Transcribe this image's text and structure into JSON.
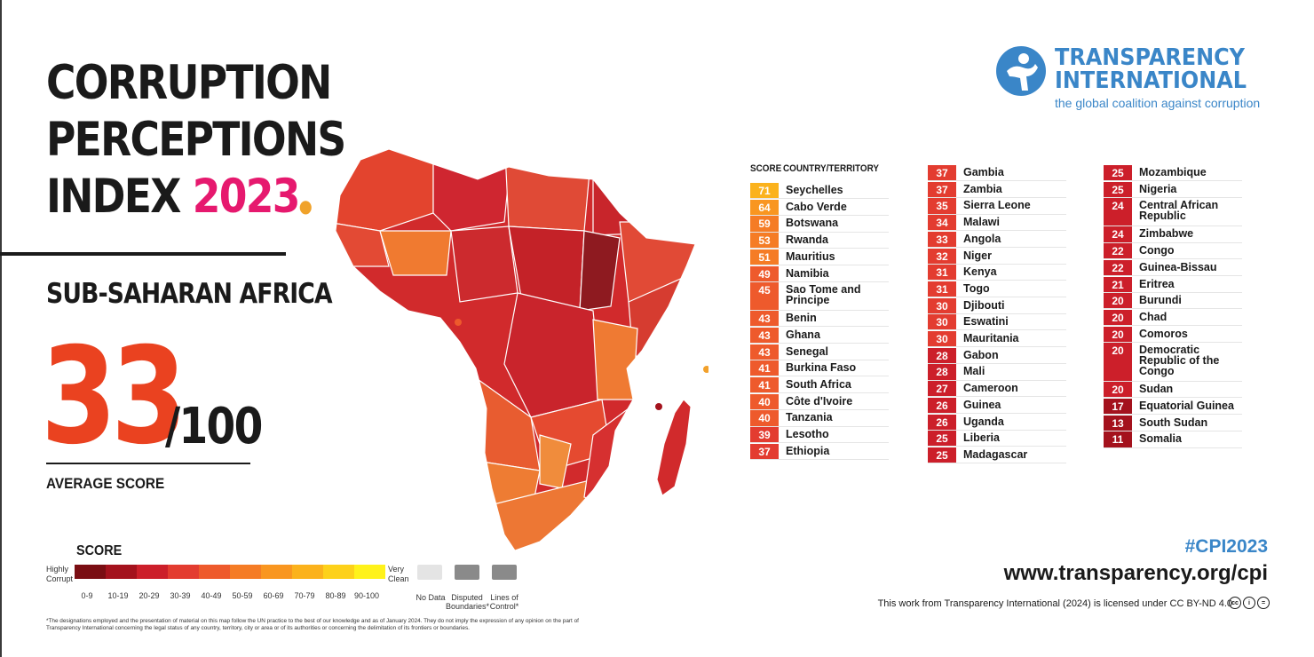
{
  "header": {
    "title_lines": [
      "CORRUPTION",
      "PERCEPTIONS",
      "INDEX"
    ],
    "year": "2023",
    "region": "SUB-SAHARAN AFRICA"
  },
  "average": {
    "score": "33",
    "max": "/100",
    "label": "AVERAGE SCORE"
  },
  "legend": {
    "title": "SCORE",
    "low_label": "Highly Corrupt",
    "high_label": "Very Clean",
    "ranges": [
      "0-9",
      "10-19",
      "20-29",
      "30-39",
      "40-49",
      "50-59",
      "60-69",
      "70-79",
      "80-89",
      "90-100"
    ],
    "colors": [
      "#7a0e13",
      "#a4121d",
      "#cc1f2a",
      "#e33c30",
      "#ee5a2c",
      "#f57c25",
      "#f99620",
      "#fbb21c",
      "#fdd11a",
      "#fff21a"
    ],
    "no_data": "No Data",
    "disputed": "Disputed Boundaries*",
    "lines_of_control": "Lines of Control*"
  },
  "footnote": "*The designations employed and the presentation of material on this map follow the UN practice to the best of our knowledge and as of January 2024. They do not imply the expression of any opinion on the part of Transparency International concerning the legal status of any country, territory, city or area or of its authorities or concerning the delimitation of its frontiers or boundaries.",
  "logo": {
    "line1": "TRANSPARENCY",
    "line2": "INTERNATIONAL",
    "tagline": "the global coalition against corruption",
    "icon": "ti-figure-icon"
  },
  "table_headers": {
    "score": "SCORE",
    "country": "COUNTRY/TERRITORY"
  },
  "chart_data": {
    "type": "table",
    "title": "CORRUPTION PERCEPTIONS INDEX 2023",
    "subtitle": "SUB-SAHARAN AFRICA",
    "columns": [
      [
        {
          "score": 71,
          "country": "Seychelles"
        },
        {
          "score": 64,
          "country": "Cabo Verde"
        },
        {
          "score": 59,
          "country": "Botswana"
        },
        {
          "score": 53,
          "country": "Rwanda"
        },
        {
          "score": 51,
          "country": "Mauritius"
        },
        {
          "score": 49,
          "country": "Namibia"
        },
        {
          "score": 45,
          "country": "Sao Tome and Principe"
        },
        {
          "score": 43,
          "country": "Benin"
        },
        {
          "score": 43,
          "country": "Ghana"
        },
        {
          "score": 43,
          "country": "Senegal"
        },
        {
          "score": 41,
          "country": "Burkina Faso"
        },
        {
          "score": 41,
          "country": "South Africa"
        },
        {
          "score": 40,
          "country": "Côte d'Ivoire"
        },
        {
          "score": 40,
          "country": "Tanzania"
        },
        {
          "score": 39,
          "country": "Lesotho"
        },
        {
          "score": 37,
          "country": "Ethiopia"
        }
      ],
      [
        {
          "score": 37,
          "country": "Gambia"
        },
        {
          "score": 37,
          "country": "Zambia"
        },
        {
          "score": 35,
          "country": "Sierra Leone"
        },
        {
          "score": 34,
          "country": "Malawi"
        },
        {
          "score": 33,
          "country": "Angola"
        },
        {
          "score": 32,
          "country": "Niger"
        },
        {
          "score": 31,
          "country": "Kenya"
        },
        {
          "score": 31,
          "country": "Togo"
        },
        {
          "score": 30,
          "country": "Djibouti"
        },
        {
          "score": 30,
          "country": "Eswatini"
        },
        {
          "score": 30,
          "country": "Mauritania"
        },
        {
          "score": 28,
          "country": "Gabon"
        },
        {
          "score": 28,
          "country": "Mali"
        },
        {
          "score": 27,
          "country": "Cameroon"
        },
        {
          "score": 26,
          "country": "Guinea"
        },
        {
          "score": 26,
          "country": "Uganda"
        },
        {
          "score": 25,
          "country": "Liberia"
        },
        {
          "score": 25,
          "country": "Madagascar"
        }
      ],
      [
        {
          "score": 25,
          "country": "Mozambique"
        },
        {
          "score": 25,
          "country": "Nigeria"
        },
        {
          "score": 24,
          "country": "Central African Republic"
        },
        {
          "score": 24,
          "country": "Zimbabwe"
        },
        {
          "score": 22,
          "country": "Congo"
        },
        {
          "score": 22,
          "country": "Guinea-Bissau"
        },
        {
          "score": 21,
          "country": "Eritrea"
        },
        {
          "score": 20,
          "country": "Burundi"
        },
        {
          "score": 20,
          "country": "Chad"
        },
        {
          "score": 20,
          "country": "Comoros"
        },
        {
          "score": 20,
          "country": "Democratic Republic of the Congo"
        },
        {
          "score": 20,
          "country": "Sudan"
        },
        {
          "score": 17,
          "country": "Equatorial Guinea"
        },
        {
          "score": 13,
          "country": "South Sudan"
        },
        {
          "score": 11,
          "country": "Somalia"
        }
      ]
    ]
  },
  "footer": {
    "hashtag": "#CPI2023",
    "url": "www.transparency.org/cpi",
    "license": "This work from Transparency International (2024) is licensed under CC BY-ND 4.0",
    "license_icons": [
      "cc-icon",
      "attribution-icon",
      "no-derivatives-icon"
    ]
  }
}
